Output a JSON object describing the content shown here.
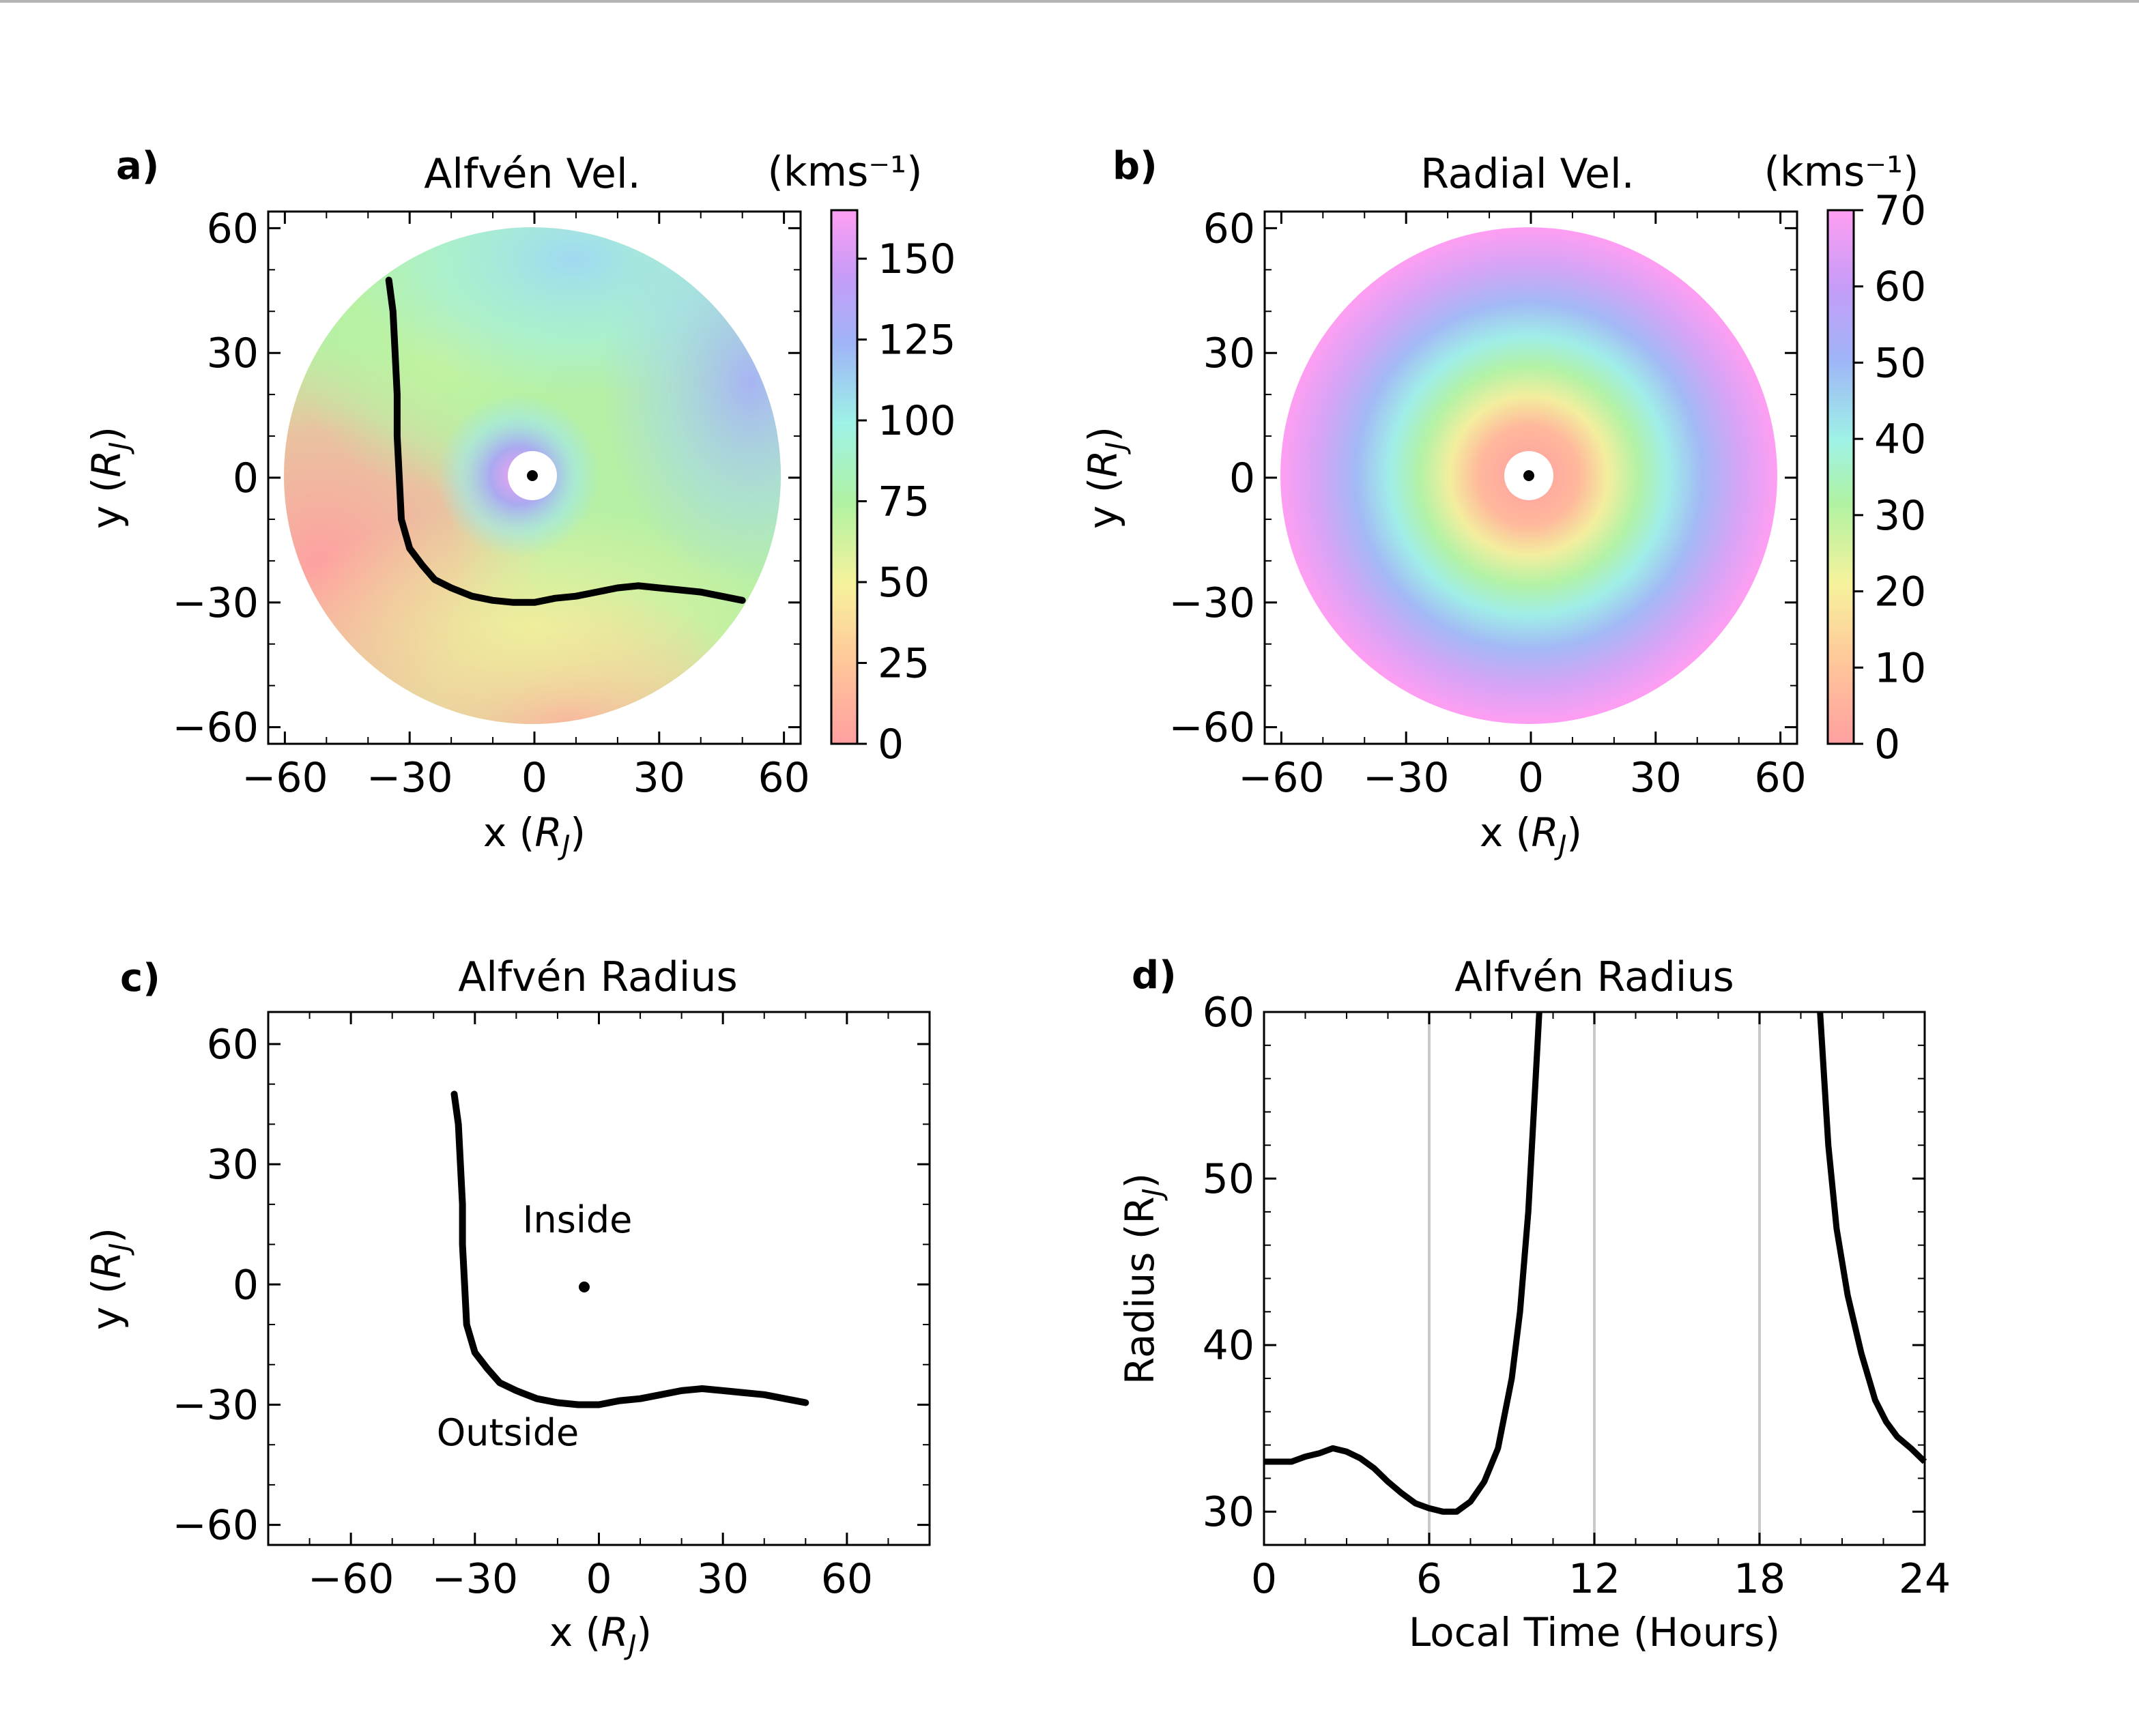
{
  "chart_data": [
    {
      "panel": "a)",
      "type": "heatmap",
      "title": "Alfvén Vel.",
      "xlabel": "x (R_J)",
      "ylabel": "y (R_J)",
      "xlim": [
        -64,
        64
      ],
      "ylim": [
        -64,
        64
      ],
      "xticks": [
        "−60",
        "−30",
        "0",
        "30",
        "60"
      ],
      "yticks": [
        "60",
        "30",
        "0",
        "−30",
        "−60"
      ],
      "tick_values": [
        -60,
        -30,
        0,
        30,
        60
      ],
      "colorbar": {
        "label": "(kms⁻¹)",
        "range": [
          0,
          165
        ],
        "ticks": [
          "0",
          "25",
          "50",
          "75",
          "100",
          "125",
          "150"
        ],
        "tick_values": [
          0,
          25,
          50,
          75,
          100,
          125,
          150
        ]
      },
      "disk_radius": 60,
      "planet_marker": [
        0,
        0
      ],
      "boundary_line": {
        "description": "Alfvén radius",
        "x": [
          -35,
          -34,
          -33.5,
          -33,
          -33,
          -32.5,
          -32,
          -30,
          -27,
          -24,
          -20,
          -15,
          -10,
          -5,
          0,
          5,
          10,
          15,
          20,
          25,
          30,
          35,
          40,
          45,
          50
        ],
        "y": [
          47.5,
          40,
          30,
          20,
          10,
          0,
          -10,
          -17,
          -21,
          -24.5,
          -26.5,
          -28.5,
          -29.5,
          -30,
          -30,
          -29,
          -28.5,
          -27.5,
          -26.5,
          -26,
          -26.5,
          -27,
          -27.5,
          -28.5,
          -29.5
        ]
      }
    },
    {
      "panel": "b)",
      "type": "heatmap",
      "title": "Radial Vel.",
      "xlabel": "x (R_J)",
      "ylabel": "y (R_J)",
      "xlim": [
        -64,
        64
      ],
      "ylim": [
        -64,
        64
      ],
      "xticks": [
        "−60",
        "−30",
        "0",
        "30",
        "60"
      ],
      "yticks": [
        "60",
        "30",
        "0",
        "−30",
        "−60"
      ],
      "tick_values": [
        -60,
        -30,
        0,
        30,
        60
      ],
      "colorbar": {
        "label": "(kms⁻¹)",
        "range": [
          0,
          70
        ],
        "ticks": [
          "0",
          "10",
          "20",
          "30",
          "40",
          "50",
          "60",
          "70"
        ],
        "tick_values": [
          0,
          10,
          20,
          30,
          40,
          50,
          60,
          70
        ]
      },
      "disk_radius": 60,
      "planet_marker": [
        0,
        0
      ]
    },
    {
      "panel": "c)",
      "type": "line",
      "title": "Alfvén Radius",
      "xlabel": "x (R_J)",
      "ylabel": "y (R_J)",
      "xlim": [
        -80,
        80
      ],
      "ylim": [
        -65,
        68
      ],
      "xticks": [
        "−60",
        "−30",
        "0",
        "30",
        "60"
      ],
      "yticks": [
        "60",
        "30",
        "0",
        "−30",
        "−60"
      ],
      "tick_values": [
        -60,
        -30,
        0,
        30,
        60
      ],
      "annotations": [
        "Inside",
        "Outside"
      ],
      "planet_marker": [
        0,
        0
      ],
      "series": [
        {
          "name": "Alfvén radius",
          "x": [
            -35,
            -34,
            -33.5,
            -33,
            -33,
            -32.5,
            -32,
            -30,
            -27,
            -24,
            -20,
            -15,
            -10,
            -5,
            0,
            5,
            10,
            15,
            20,
            25,
            30,
            35,
            40,
            45,
            50
          ],
          "y": [
            47.5,
            40,
            30,
            20,
            10,
            0,
            -10,
            -17,
            -21,
            -24.5,
            -26.5,
            -28.5,
            -29.5,
            -30,
            -30,
            -29,
            -28.5,
            -27.5,
            -26.5,
            -26,
            -26.5,
            -27,
            -27.5,
            -28.5,
            -29.5
          ]
        }
      ]
    },
    {
      "panel": "d)",
      "type": "line",
      "title": "Alfvén Radius",
      "xlabel": "Local Time (Hours)",
      "ylabel": "Radius (R_J)",
      "xlim": [
        0,
        24
      ],
      "ylim": [
        28,
        60
      ],
      "xticks": [
        "0",
        "6",
        "12",
        "18",
        "24"
      ],
      "xtick_values": [
        0,
        6,
        12,
        18,
        24
      ],
      "yticks": [
        "30",
        "40",
        "50",
        "60"
      ],
      "ytick_values": [
        30,
        40,
        50,
        60
      ],
      "vlines": [
        6,
        12,
        18
      ],
      "series": [
        {
          "name": "segment-1",
          "x": [
            0,
            1,
            1.5,
            2,
            2.5,
            3,
            3.5,
            4,
            4.5,
            5,
            5.5,
            6,
            6.5,
            7,
            7.5,
            8,
            8.5,
            9,
            9.3,
            9.6,
            9.8,
            10
          ],
          "y": [
            33,
            33,
            33.3,
            33.5,
            33.8,
            33.6,
            33.2,
            32.6,
            31.8,
            31.1,
            30.5,
            30.2,
            30,
            30,
            30.6,
            31.8,
            33.8,
            38,
            42,
            48,
            54,
            60
          ]
        },
        {
          "name": "segment-2",
          "x": [
            20.2,
            20.5,
            20.8,
            21.2,
            21.7,
            22.2,
            22.6,
            23,
            23.5,
            24
          ],
          "y": [
            60,
            52,
            47,
            43,
            39.5,
            36.7,
            35.4,
            34.5,
            33.8,
            33
          ]
        }
      ]
    }
  ]
}
